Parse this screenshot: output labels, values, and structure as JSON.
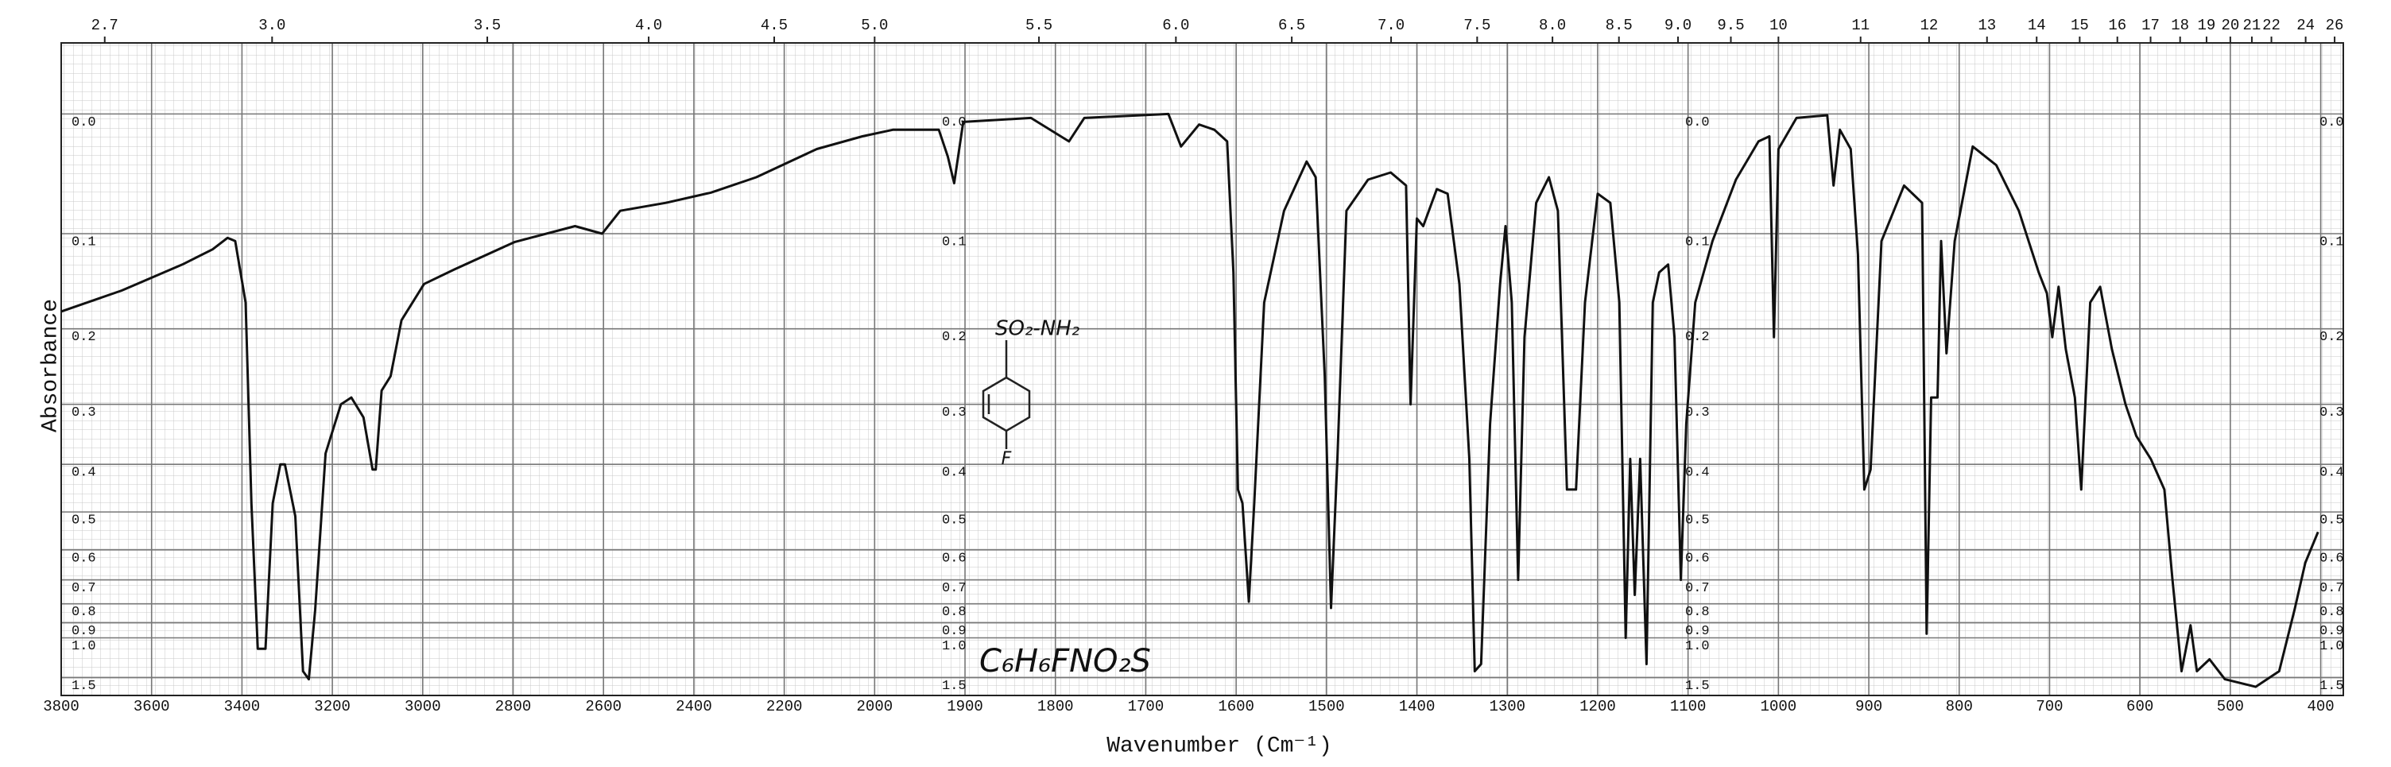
{
  "chart_data": {
    "type": "line",
    "x_label": "Wavenumber (Cm⁻¹)",
    "y_label": "Absorbance",
    "color": "#111111",
    "grid": true,
    "xlim": [
      3800,
      375
    ],
    "ylim": [
      -0.05,
      3
    ],
    "xscale": {
      "break": 2000,
      "factor": 2
    },
    "yscale": "transmittance-linear",
    "x2scale": "micrometers",
    "xticks": [
      3800,
      3600,
      3400,
      3200,
      3000,
      2800,
      2600,
      2400,
      2200,
      2000,
      1900,
      1800,
      1700,
      1600,
      1500,
      1400,
      1300,
      1200,
      1100,
      1000,
      900,
      800,
      700,
      600,
      500,
      400
    ],
    "x2ticks": [
      2.7,
      {
        "value": 3,
        "label": "3.0"
      },
      3.5,
      {
        "value": 4,
        "label": "4.0"
      },
      4.5,
      {
        "value": 5,
        "label": "5.0"
      },
      5.5,
      {
        "value": 6,
        "label": "6.0"
      },
      6.5,
      {
        "value": 7,
        "label": "7.0"
      },
      7.5,
      {
        "value": 8,
        "label": "8.0"
      },
      8.5,
      {
        "value": 9,
        "label": "9.0"
      },
      9.5,
      10,
      11,
      12,
      13,
      14,
      15,
      16,
      17,
      18,
      19,
      20,
      21,
      22,
      24,
      26
    ],
    "yticks": [
      {
        "value": 0,
        "label": "0.0"
      },
      0.1,
      0.2,
      0.3,
      0.4,
      0.5,
      0.6,
      0.7,
      0.8,
      0.9,
      {
        "value": 1,
        "label": "1.0"
      },
      1.5
    ],
    "x": [
      3800,
      3666,
      3532,
      3465,
      3432,
      3415,
      3392,
      3379,
      3365,
      3348,
      3332,
      3315,
      3305,
      3282,
      3265,
      3252,
      3238,
      3215,
      3181,
      3158,
      3131,
      3111,
      3104,
      3091,
      3071,
      3047,
      2997,
      2930,
      2797,
      2663,
      2603,
      2563,
      2462,
      2362,
      2262,
      2128,
      2027,
      1980,
      1929,
      1919,
      1912,
      1902,
      1827,
      1785,
      1768,
      1675,
      1661,
      1641,
      1624,
      1610,
      1603,
      1598,
      1593,
      1586,
      1580,
      1569,
      1547,
      1522,
      1512,
      1502,
      1495,
      1488,
      1478,
      1454,
      1429,
      1412,
      1407,
      1400,
      1393,
      1378,
      1366,
      1353,
      1342,
      1336,
      1329,
      1319,
      1308,
      1302,
      1295,
      1288,
      1281,
      1268,
      1254,
      1244,
      1234,
      1224,
      1214,
      1200,
      1186,
      1176,
      1169,
      1164,
      1159,
      1153,
      1146,
      1139,
      1132,
      1122,
      1115,
      1108,
      1102,
      1092,
      1073,
      1047,
      1022,
      1010,
      1005,
      1000,
      980,
      946,
      939,
      932,
      920,
      912,
      905,
      898,
      886,
      861,
      841,
      836,
      831,
      824,
      820,
      814,
      805,
      785,
      759,
      734,
      712,
      703,
      697,
      690,
      682,
      672,
      665,
      655,
      644,
      631,
      616,
      604,
      588,
      573,
      564,
      554,
      544,
      537,
      523,
      506,
      472,
      446,
      429,
      417,
      403
    ],
    "values": [
      0.18,
      0.157,
      0.13,
      0.115,
      0.104,
      0.107,
      0.17,
      0.48,
      1.09,
      1.09,
      0.48,
      0.4,
      0.4,
      0.51,
      1.37,
      1.54,
      0.83,
      0.38,
      0.3,
      0.29,
      0.32,
      0.41,
      0.41,
      0.28,
      0.26,
      0.19,
      0.15,
      0.135,
      0.108,
      0.093,
      0.1,
      0.079,
      0.072,
      0.063,
      0.05,
      0.027,
      0.017,
      0.012,
      0.012,
      0.033,
      0.055,
      0.006,
      0.003,
      0.021,
      0.003,
      0,
      0.025,
      0.008,
      0.012,
      0.021,
      0.138,
      0.45,
      0.48,
      0.79,
      0.48,
      0.17,
      0.079,
      0.037,
      0.05,
      0.26,
      0.82,
      0.39,
      0.079,
      0.052,
      0.046,
      0.057,
      0.3,
      0.086,
      0.093,
      0.06,
      0.064,
      0.15,
      0.39,
      1.37,
      1.26,
      0.33,
      0.15,
      0.093,
      0.17,
      0.7,
      0.21,
      0.072,
      0.05,
      0.079,
      0.45,
      0.45,
      0.17,
      0.064,
      0.072,
      0.17,
      1,
      0.39,
      0.76,
      0.39,
      1.26,
      0.17,
      0.138,
      0.13,
      0.21,
      0.7,
      0.33,
      0.17,
      0.107,
      0.052,
      0.021,
      0.017,
      0.21,
      0.027,
      0.003,
      0.001,
      0.057,
      0.012,
      0.027,
      0.12,
      0.45,
      0.41,
      0.107,
      0.057,
      0.072,
      0.97,
      0.29,
      0.29,
      0.107,
      0.23,
      0.107,
      0.025,
      0.04,
      0.079,
      0.138,
      0.16,
      0.21,
      0.153,
      0.225,
      0.29,
      0.45,
      0.17,
      0.153,
      0.225,
      0.3,
      0.35,
      0.39,
      0.45,
      0.7,
      1.37,
      0.915,
      1.37,
      1.2,
      1.54,
      1.8,
      1.37,
      0.83,
      0.64,
      0.55
    ],
    "annotations": {
      "formula": "C₆H₆FNO₂S",
      "substituent": "SO₂-NH₂",
      "para": "F"
    }
  }
}
